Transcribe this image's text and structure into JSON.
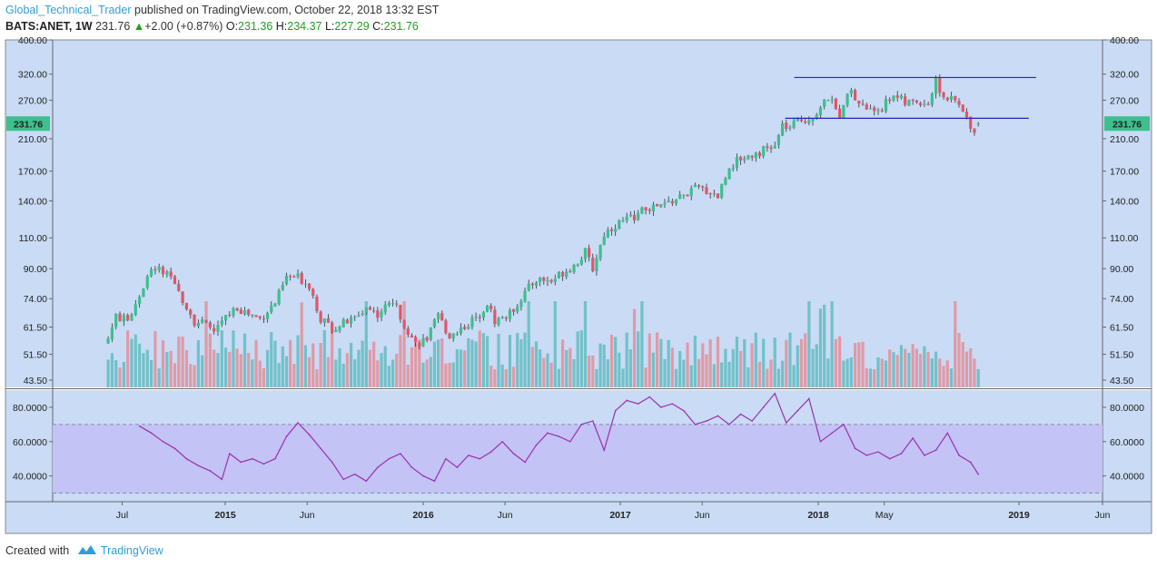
{
  "header": {
    "author": "Global_Technical_Trader",
    "published": "published on TradingView.com, October 22, 2018 13:32 EST",
    "symbol": "BATS:ANET, 1W",
    "last": "231.76",
    "change_arrow": "▲",
    "change": "+2.00 (+0.87%)",
    "o_label": "O:",
    "o_value": "231.36",
    "h_label": "H:",
    "h_value": "234.37",
    "l_label": "L:",
    "l_value": "227.29",
    "c_label": "C:",
    "c_value": "231.76"
  },
  "footer": {
    "created_with": "Created with",
    "brand": "TradingView"
  },
  "colors": {
    "background": "#c9dbf5",
    "up": "#3dbf8e",
    "down": "#e0566a",
    "vol_up": "#71c1c8",
    "vol_down": "#e09aa6",
    "rsi_line": "#9b2fae",
    "rsi_band": "#c3c3f5",
    "hline": "#2323c8",
    "price_label_bg": "#3dbf8e"
  },
  "chart_data": [
    {
      "type": "candlestick",
      "title": "BATS:ANET, 1W",
      "y_scale": "log",
      "ylim": [
        41.5,
        400
      ],
      "y_ticks": [
        "400.00",
        "320.00",
        "270.00",
        "210.00",
        "170.00",
        "140.00",
        "110.00",
        "90.00",
        "74.00",
        "61.50",
        "51.50",
        "43.50"
      ],
      "x_ticks": [
        "Jul",
        "2015",
        "Jun",
        "2016",
        "Jun",
        "2017",
        "Jun",
        "2018",
        "May",
        "2019",
        "Jun"
      ],
      "x_range": [
        "2014-05",
        "2019-06"
      ],
      "last_price_label": "231.76",
      "horizontal_lines": [
        {
          "value": 313,
          "from": "2017-11",
          "to": "2019-02"
        },
        {
          "value": 240,
          "from": "2017-11",
          "to": "2019-02"
        }
      ],
      "close_path": [
        [
          "2014-06-06",
          57
        ],
        [
          "2014-06-20",
          66
        ],
        [
          "2014-07-11",
          64
        ],
        [
          "2014-07-25",
          72
        ],
        [
          "2014-08-15",
          85
        ],
        [
          "2014-08-29",
          91
        ],
        [
          "2014-09-19",
          86
        ],
        [
          "2014-10-03",
          80
        ],
        [
          "2014-10-17",
          74
        ],
        [
          "2014-11-07",
          64
        ],
        [
          "2014-11-21",
          63
        ],
        [
          "2014-12-12",
          60
        ],
        [
          "2015-01-09",
          67
        ],
        [
          "2015-01-23",
          70
        ],
        [
          "2015-02-13",
          67
        ],
        [
          "2015-03-06",
          65
        ],
        [
          "2015-04-03",
          72
        ],
        [
          "2015-04-24",
          85
        ],
        [
          "2015-05-15",
          85
        ],
        [
          "2015-06-05",
          81
        ],
        [
          "2015-06-26",
          65
        ],
        [
          "2015-07-17",
          61
        ],
        [
          "2015-08-07",
          63
        ],
        [
          "2015-08-28",
          65
        ],
        [
          "2015-09-18",
          70
        ],
        [
          "2015-10-09",
          67
        ],
        [
          "2015-11-06",
          73
        ],
        [
          "2015-11-27",
          63
        ],
        [
          "2015-12-18",
          55
        ],
        [
          "2016-01-08",
          57
        ],
        [
          "2016-01-29",
          66
        ],
        [
          "2016-02-19",
          58
        ],
        [
          "2016-03-18",
          62
        ],
        [
          "2016-04-08",
          65
        ],
        [
          "2016-04-29",
          72
        ],
        [
          "2016-05-13",
          64
        ],
        [
          "2016-06-10",
          67
        ],
        [
          "2016-07-08",
          77
        ],
        [
          "2016-07-29",
          84
        ],
        [
          "2016-08-26",
          83
        ],
        [
          "2016-09-16",
          88
        ],
        [
          "2016-10-07",
          92
        ],
        [
          "2016-10-28",
          100
        ],
        [
          "2016-11-11",
          90
        ],
        [
          "2016-12-02",
          113
        ],
        [
          "2016-12-23",
          120
        ],
        [
          "2017-01-20",
          125
        ],
        [
          "2017-02-17",
          133
        ],
        [
          "2017-03-17",
          135
        ],
        [
          "2017-04-07",
          140
        ],
        [
          "2017-04-28",
          145
        ],
        [
          "2017-05-19",
          152
        ],
        [
          "2017-06-09",
          150
        ],
        [
          "2017-06-30",
          145
        ],
        [
          "2017-07-21",
          175
        ],
        [
          "2017-08-11",
          185
        ],
        [
          "2017-09-01",
          190
        ],
        [
          "2017-09-22",
          195
        ],
        [
          "2017-10-13",
          199
        ],
        [
          "2017-10-27",
          229
        ],
        [
          "2017-11-10",
          225
        ],
        [
          "2017-11-24",
          235
        ],
        [
          "2017-12-15",
          240
        ],
        [
          "2018-01-05",
          255
        ],
        [
          "2018-01-19",
          275
        ],
        [
          "2018-02-09",
          245
        ],
        [
          "2018-02-23",
          290
        ],
        [
          "2018-03-16",
          265
        ],
        [
          "2018-04-06",
          252
        ],
        [
          "2018-04-27",
          258
        ],
        [
          "2018-05-18",
          282
        ],
        [
          "2018-06-08",
          264
        ],
        [
          "2018-06-29",
          268
        ],
        [
          "2018-07-20",
          265
        ],
        [
          "2018-08-03",
          305
        ],
        [
          "2018-08-17",
          275
        ],
        [
          "2018-09-07",
          268
        ],
        [
          "2018-09-28",
          240
        ],
        [
          "2018-10-12",
          222
        ],
        [
          "2018-10-19",
          231.76
        ]
      ]
    },
    {
      "type": "bar",
      "title": "Volume",
      "note": "volume bars colored by candle direction, shown at the bottom of the price pane (no scale printed)"
    },
    {
      "type": "line",
      "title": "RSI",
      "ylim": [
        25,
        90
      ],
      "y_ticks": [
        "80.0000",
        "60.0000",
        "40.0000"
      ],
      "band": [
        30,
        70
      ],
      "x": [
        "2014-08-01",
        "2014-08-22",
        "2014-09-12",
        "2014-10-03",
        "2014-10-24",
        "2014-11-14",
        "2014-12-05",
        "2014-12-26",
        "2015-01-09",
        "2015-01-30",
        "2015-02-20",
        "2015-03-13",
        "2015-04-03",
        "2015-04-24",
        "2015-05-15",
        "2015-06-05",
        "2015-06-26",
        "2015-07-17",
        "2015-08-07",
        "2015-08-28",
        "2015-09-18",
        "2015-10-09",
        "2015-10-30",
        "2015-11-20",
        "2015-12-11",
        "2016-01-01",
        "2016-01-22",
        "2016-02-12",
        "2016-03-04",
        "2016-03-25",
        "2016-04-15",
        "2016-05-06",
        "2016-05-27",
        "2016-06-17",
        "2016-07-08",
        "2016-07-29",
        "2016-08-19",
        "2016-09-09",
        "2016-09-30",
        "2016-10-21",
        "2016-11-11",
        "2016-12-02",
        "2016-12-23",
        "2017-01-13",
        "2017-02-03",
        "2017-02-24",
        "2017-03-17",
        "2017-04-07",
        "2017-04-28",
        "2017-05-19",
        "2017-06-09",
        "2017-06-30",
        "2017-07-21",
        "2017-08-11",
        "2017-09-01",
        "2017-09-22",
        "2017-10-13",
        "2017-11-03",
        "2017-11-24",
        "2017-12-15",
        "2018-01-05",
        "2018-01-26",
        "2018-02-16",
        "2018-03-09",
        "2018-03-30",
        "2018-04-20",
        "2018-05-11",
        "2018-06-01",
        "2018-06-22",
        "2018-07-13",
        "2018-08-03",
        "2018-08-24",
        "2018-09-14",
        "2018-10-05",
        "2018-10-19"
      ],
      "values": [
        69,
        65,
        60,
        56,
        50,
        46,
        43,
        38,
        53,
        48,
        50,
        47,
        50,
        63,
        71,
        64,
        56,
        48,
        38,
        41,
        37,
        45,
        50,
        53,
        45,
        40,
        37,
        50,
        45,
        52,
        50,
        54,
        60,
        53,
        48,
        58,
        65,
        63,
        60,
        70,
        72,
        55,
        78,
        84,
        82,
        86,
        80,
        82,
        78,
        70,
        72,
        75,
        70,
        76,
        72,
        80,
        88,
        71,
        78,
        85,
        60,
        65,
        70,
        56,
        52,
        54,
        50,
        53,
        62,
        52,
        55,
        65,
        52,
        48,
        41
      ]
    }
  ]
}
